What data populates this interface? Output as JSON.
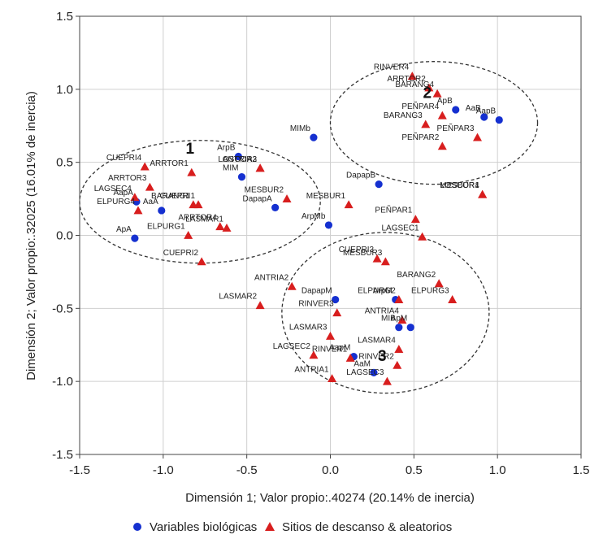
{
  "chart_data": {
    "type": "scatter",
    "xlabel": "Dimensión 1; Valor propio:.40274 (20.14% de inercia)",
    "ylabel": "Dimensión 2; Valor propio:.32025 (16.01% de inercia)",
    "xlim": [
      -1.5,
      1.5
    ],
    "ylim": [
      -1.5,
      1.5
    ],
    "xticks": [
      "-1.5",
      "-1.0",
      "-0.5",
      "0.0",
      "0.5",
      "1.0",
      "1.5"
    ],
    "yticks": [
      "1.5",
      "1.0",
      "0.5",
      "0.0",
      "-0.5",
      "-1.0",
      "-1.5"
    ],
    "xtick_values": [
      -1.5,
      -1.0,
      -0.5,
      0.0,
      0.5,
      1.0,
      1.5
    ],
    "ytick_values": [
      1.5,
      1.0,
      0.5,
      0.0,
      -0.5,
      -1.0,
      -1.5
    ],
    "grid": true,
    "legend_position": "bottom",
    "groups": [
      {
        "label": "1",
        "center": [
          -0.78,
          0.23
        ],
        "radius": [
          0.72,
          0.42
        ]
      },
      {
        "label": "2",
        "center": [
          0.62,
          0.77
        ],
        "radius": [
          0.62,
          0.42
        ]
      },
      {
        "label": "3",
        "center": [
          0.33,
          -0.53
        ],
        "radius": [
          0.62,
          0.55
        ]
      }
    ],
    "series": [
      {
        "name": "Variables biológicas",
        "marker": "circle",
        "color": "#1530d0",
        "points": [
          {
            "label": "ApB",
            "x": 0.75,
            "y": 0.86
          },
          {
            "label": "AaB",
            "x": 0.92,
            "y": 0.81
          },
          {
            "label": "AapB",
            "x": 1.01,
            "y": 0.79
          },
          {
            "label": "MIMb",
            "x": -0.1,
            "y": 0.67
          },
          {
            "label": "ArpB",
            "x": -0.55,
            "y": 0.54
          },
          {
            "label": "MIM",
            "x": -0.53,
            "y": 0.4
          },
          {
            "label": "DapapB",
            "x": 0.29,
            "y": 0.35
          },
          {
            "label": "DapapA",
            "x": -0.33,
            "y": 0.19
          },
          {
            "label": "AapA",
            "x": -1.16,
            "y": 0.23
          },
          {
            "label": "AaA",
            "x": -1.01,
            "y": 0.17
          },
          {
            "label": "ApA",
            "x": -1.17,
            "y": -0.02
          },
          {
            "label": "ArpMb",
            "x": -0.01,
            "y": 0.07
          },
          {
            "label": "DapapM",
            "x": 0.03,
            "y": -0.44
          },
          {
            "label": "ArpM",
            "x": 0.39,
            "y": -0.44
          },
          {
            "label": "MIB",
            "x": 0.41,
            "y": -0.63
          },
          {
            "label": "ApM",
            "x": 0.48,
            "y": -0.63
          },
          {
            "label": "AapM",
            "x": 0.14,
            "y": -0.83
          },
          {
            "label": "AaM",
            "x": 0.26,
            "y": -0.94
          }
        ]
      },
      {
        "name": "Sitios de descanso & aleatorios",
        "marker": "triangle",
        "color": "#d81e1e",
        "points": [
          {
            "label": "RINVER4",
            "x": 0.49,
            "y": 1.09
          },
          {
            "label": "ARRTOR2",
            "x": 0.59,
            "y": 1.01
          },
          {
            "label": "BARANG4",
            "x": 0.64,
            "y": 0.97
          },
          {
            "label": "PEÑPAR4",
            "x": 0.67,
            "y": 0.82
          },
          {
            "label": "BARANG3",
            "x": 0.57,
            "y": 0.76
          },
          {
            "label": "PEÑPAR3",
            "x": 0.88,
            "y": 0.67
          },
          {
            "label": "PEÑPAR2",
            "x": 0.67,
            "y": 0.61
          },
          {
            "label": "LOSCOR1",
            "x": 0.91,
            "y": 0.28
          },
          {
            "label": "MESBUR4",
            "x": 0.91,
            "y": 0.28
          },
          {
            "label": "CUEPRI4",
            "x": -1.11,
            "y": 0.47
          },
          {
            "label": "ARRTOR1",
            "x": -0.83,
            "y": 0.43
          },
          {
            "label": "ANTRIA3",
            "x": -0.42,
            "y": 0.46
          },
          {
            "label": "LOSCOR2",
            "x": -0.42,
            "y": 0.46
          },
          {
            "label": "ARRTOR3",
            "x": -1.08,
            "y": 0.33
          },
          {
            "label": "LAGSEC4",
            "x": -1.17,
            "y": 0.26
          },
          {
            "label": "BARANG1",
            "x": -0.82,
            "y": 0.21
          },
          {
            "label": "CUEPRI1",
            "x": -0.79,
            "y": 0.21
          },
          {
            "label": "ARRTOR4",
            "x": -0.66,
            "y": 0.06
          },
          {
            "label": "ELPURG4",
            "x": -1.15,
            "y": 0.17
          },
          {
            "label": "ELPURG1",
            "x": -0.85,
            "y": 0.0
          },
          {
            "label": "LASMAR1",
            "x": -0.62,
            "y": 0.05
          },
          {
            "label": "CUEPRI2",
            "x": -0.77,
            "y": -0.18
          },
          {
            "label": "MESBUR2",
            "x": -0.26,
            "y": 0.25
          },
          {
            "label": "MESBUR1",
            "x": 0.11,
            "y": 0.21
          },
          {
            "label": "PEÑPAR1",
            "x": 0.51,
            "y": 0.11
          },
          {
            "label": "LAGSEC1",
            "x": 0.55,
            "y": -0.01
          },
          {
            "label": "CUEPRI3",
            "x": 0.28,
            "y": -0.16
          },
          {
            "label": "MESBUR3",
            "x": 0.33,
            "y": -0.18
          },
          {
            "label": "ANTRIA2",
            "x": -0.23,
            "y": -0.35
          },
          {
            "label": "LASMAR2",
            "x": -0.42,
            "y": -0.48
          },
          {
            "label": "BARANG2",
            "x": 0.65,
            "y": -0.33
          },
          {
            "label": "ELPURG2",
            "x": 0.41,
            "y": -0.44
          },
          {
            "label": "ELPURG3",
            "x": 0.73,
            "y": -0.44
          },
          {
            "label": "RINVER3",
            "x": 0.04,
            "y": -0.53
          },
          {
            "label": "ANTRIA4",
            "x": 0.43,
            "y": -0.58
          },
          {
            "label": "LASMAR3",
            "x": 0.0,
            "y": -0.69
          },
          {
            "label": "LASMAR4",
            "x": 0.41,
            "y": -0.78
          },
          {
            "label": "LAGSEC2",
            "x": -0.1,
            "y": -0.82
          },
          {
            "label": "RINVER1",
            "x": 0.12,
            "y": -0.84
          },
          {
            "label": "RINVER2",
            "x": 0.4,
            "y": -0.89
          },
          {
            "label": "ANTRIA1",
            "x": 0.01,
            "y": -0.98
          },
          {
            "label": "LAGSEC3",
            "x": 0.34,
            "y": -1.0
          }
        ]
      }
    ]
  }
}
